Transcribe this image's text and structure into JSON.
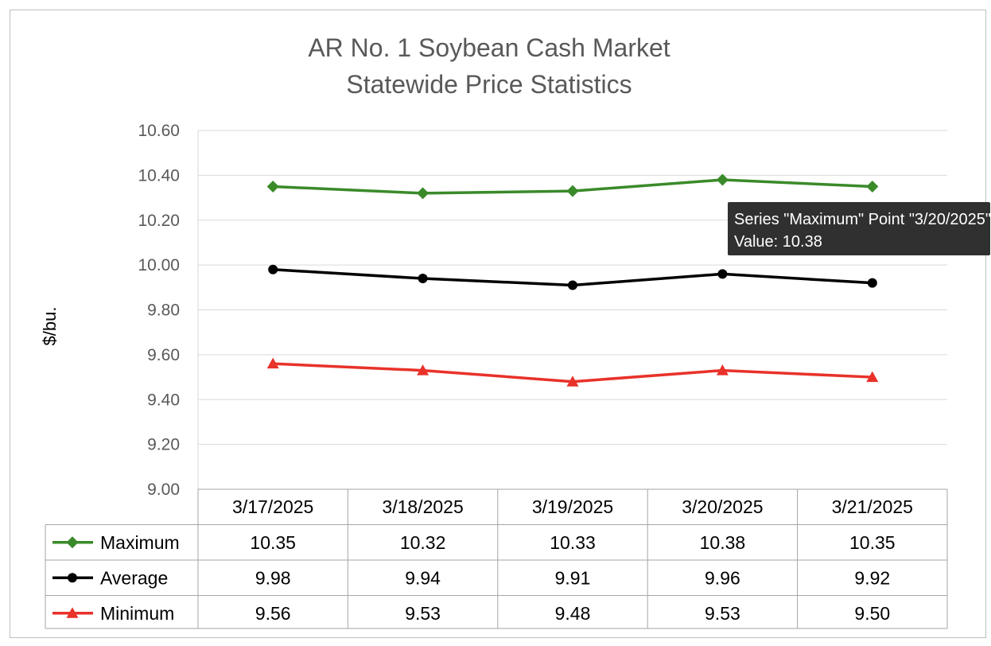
{
  "chart_data": {
    "type": "line",
    "title": "AR No. 1 Soybean Cash Market",
    "subtitle": "Statewide Price Statistics",
    "ylabel": "$/bu.",
    "xlabel": "",
    "ylim": [
      9.0,
      10.6
    ],
    "yticks": [
      "10.60",
      "10.40",
      "10.20",
      "10.00",
      "9.80",
      "9.60",
      "9.40",
      "9.20",
      "9.00"
    ],
    "categories": [
      "3/17/2025",
      "3/18/2025",
      "3/19/2025",
      "3/20/2025",
      "3/21/2025"
    ],
    "grid": true,
    "legend": "data-table",
    "series": [
      {
        "name": "Maximum",
        "color": "#3a8a2a",
        "marker": "diamond",
        "values": [
          10.35,
          10.32,
          10.33,
          10.38,
          10.35
        ],
        "labels": [
          "10.35",
          "10.32",
          "10.33",
          "10.38",
          "10.35"
        ]
      },
      {
        "name": "Average",
        "color": "#000000",
        "marker": "circle",
        "values": [
          9.98,
          9.94,
          9.91,
          9.96,
          9.92
        ],
        "labels": [
          "9.98",
          "9.94",
          "9.91",
          "9.96",
          "9.92"
        ]
      },
      {
        "name": "Minimum",
        "color": "#e8322a",
        "marker": "triangle",
        "values": [
          9.56,
          9.53,
          9.48,
          9.53,
          9.5
        ],
        "labels": [
          "9.56",
          "9.53",
          "9.48",
          "9.53",
          "9.50"
        ]
      }
    ]
  },
  "tooltip": {
    "line1": "Series \"Maximum\" Point \"3/20/2025\"",
    "line2": "Value: 10.38"
  }
}
